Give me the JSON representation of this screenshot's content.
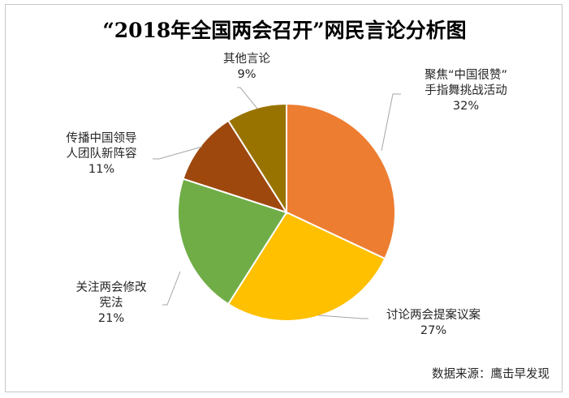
{
  "chart_data": {
    "type": "pie",
    "title": "“2018年全国两会召开”网民言论分析图",
    "slices": [
      {
        "label_lines": [
          "聚焦“中国很赞”",
          "手指舞挑战活动"
        ],
        "value": 32,
        "percent": "32%",
        "color": "#ED7D31"
      },
      {
        "label_lines": [
          "讨论两会提案议案"
        ],
        "value": 27,
        "percent": "27%",
        "color": "#FFC000"
      },
      {
        "label_lines": [
          "关注两会修改",
          "宪法"
        ],
        "value": 21,
        "percent": "21%",
        "color": "#70AD47"
      },
      {
        "label_lines": [
          "传播中国领导",
          "人团队新阵容"
        ],
        "value": 11,
        "percent": "11%",
        "color": "#9E480E"
      },
      {
        "label_lines": [
          "其他言论"
        ],
        "value": 9,
        "percent": "9%",
        "color": "#997300"
      }
    ],
    "source": "数据来源：鹰击早发现"
  }
}
